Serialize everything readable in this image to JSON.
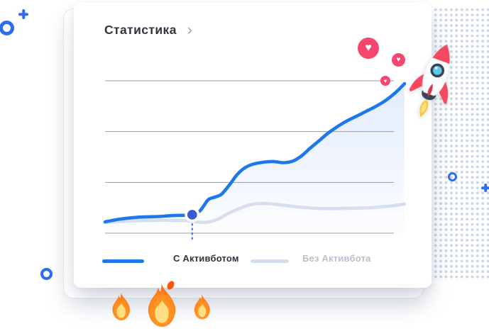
{
  "card": {
    "title": "Статистика",
    "chevron": "›"
  },
  "chart_data": {
    "type": "line",
    "title": "Статистика",
    "xlabel": "",
    "ylabel": "",
    "x_range": [
      0,
      100
    ],
    "y_range": [
      0,
      100
    ],
    "units": "relative 0-100 scale; axes are unlabeled in the source graphic",
    "grid": true,
    "gridlines_y": [
      0,
      33.3,
      66.7,
      100
    ],
    "grid_color": "#9c9ca1",
    "legend_position": "bottom",
    "series": [
      {
        "name": "С Активботом",
        "color": "#1e78e9",
        "area_fill": true,
        "points": [
          [
            0,
            7.4
          ],
          [
            5.2,
            9.3
          ],
          [
            11.1,
            10.5
          ],
          [
            17.1,
            10.9
          ],
          [
            23,
            11.6
          ],
          [
            29.1,
            12.1
          ],
          [
            31.8,
            14.9
          ],
          [
            34.4,
            21.9
          ],
          [
            36.7,
            23.7
          ],
          [
            38.9,
            25.6
          ],
          [
            41.5,
            31.6
          ],
          [
            43.8,
            37.7
          ],
          [
            46.2,
            42.3
          ],
          [
            49.1,
            45.1
          ],
          [
            52.6,
            46.5
          ],
          [
            56.2,
            47
          ],
          [
            59.7,
            46.3
          ],
          [
            62.8,
            47.4
          ],
          [
            65.6,
            50.7
          ],
          [
            68.5,
            55.8
          ],
          [
            71.6,
            60.9
          ],
          [
            74.4,
            65.6
          ],
          [
            77.5,
            69.8
          ],
          [
            80.6,
            73.5
          ],
          [
            83.9,
            76.7
          ],
          [
            87.2,
            80
          ],
          [
            90.5,
            83.3
          ],
          [
            93.6,
            87
          ],
          [
            96.9,
            92.1
          ],
          [
            100,
            98.1
          ]
        ],
        "marker": {
          "x": 29.1,
          "y": 12.1,
          "color": "#3a5ad1",
          "guide_color": "#3f7ae8"
        }
      },
      {
        "name": "Без Активбота",
        "color": "#d6dfee",
        "area_fill": false,
        "points": [
          [
            0,
            7
          ],
          [
            7.6,
            7.9
          ],
          [
            15.9,
            8.4
          ],
          [
            24.2,
            8.4
          ],
          [
            29.1,
            7.9
          ],
          [
            33.2,
            7
          ],
          [
            37.2,
            8.8
          ],
          [
            41.2,
            13
          ],
          [
            45.5,
            16.7
          ],
          [
            49.5,
            19.1
          ],
          [
            53.8,
            19.5
          ],
          [
            58.5,
            18.6
          ],
          [
            64.5,
            17.2
          ],
          [
            71.6,
            16.3
          ],
          [
            79.9,
            16.3
          ],
          [
            88.2,
            16.7
          ],
          [
            94.8,
            17.7
          ],
          [
            100,
            19.1
          ]
        ]
      }
    ]
  },
  "decorations": {
    "heart_glyph": "♥",
    "heart_color": "#f5466d",
    "accent_color": "#2e6bf0",
    "dot_grid_color": "#cbd5e3",
    "items": [
      "heart-large",
      "heart-medium",
      "heart-small",
      "rocket",
      "fire-left",
      "fire-center",
      "fire-right",
      "ring-top-left",
      "plus-top-left",
      "ring-bottom-left",
      "ring-right",
      "plus-right",
      "dot-grid"
    ]
  }
}
